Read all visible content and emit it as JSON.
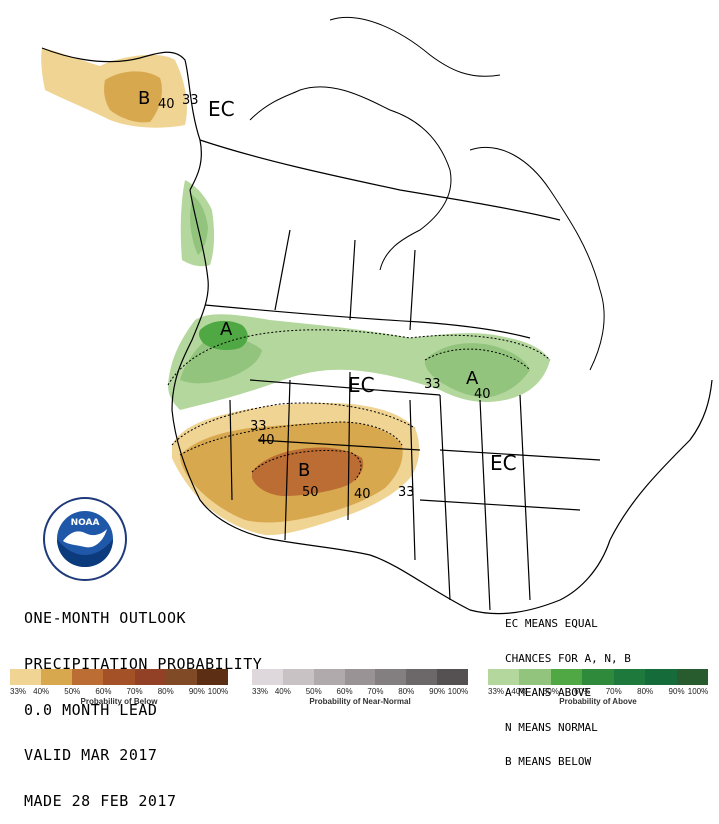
{
  "map": {
    "labels": {
      "ec_alaska": "EC",
      "ec_central": "EC",
      "ec_east": "EC",
      "b_alaska": "B",
      "b_southwest": "B",
      "a_northwest": "A",
      "a_greatlakes": "A"
    },
    "contours": {
      "ak_40": "40",
      "ak_33": "33",
      "sw_33": "33",
      "sw_40": "40",
      "sw_50": "50",
      "sw_40b": "40",
      "sw_33b": "33",
      "gl_33": "33",
      "gl_40": "40"
    }
  },
  "title": {
    "line1": "ONE-MONTH OUTLOOK",
    "line2": "PRECIPITATION PROBABILITY",
    "line3": "0.0 MONTH LEAD",
    "line4": "VALID MAR 2017",
    "line5": "MADE 28 FEB 2017"
  },
  "legend_note": {
    "line1": "EC MEANS EQUAL",
    "line2": "CHANCES FOR A, N, B",
    "line3": "A MEANS ABOVE",
    "line4": "N MEANS NORMAL",
    "line5": "B MEANS BELOW"
  },
  "logo": {
    "text": "NOAA",
    "ring_text": "NATIONAL OCEANIC AND ATMOSPHERIC ADMINISTRATION · U.S. DEPARTMENT OF COMMERCE"
  },
  "legend": {
    "below": {
      "caption": "Probability of Below",
      "ticks": [
        "33%",
        "40%",
        "50%",
        "60%",
        "70%",
        "80%",
        "90%",
        "100%"
      ],
      "colors": [
        "#f0d493",
        "#d8a84f",
        "#bb6d33",
        "#a45127",
        "#934126",
        "#804a27",
        "#5c2f14",
        "#4a2418"
      ]
    },
    "normal": {
      "caption": "Probability of Near-Normal",
      "ticks": [
        "33%",
        "40%",
        "50%",
        "60%",
        "70%",
        "80%",
        "90%",
        "100%"
      ],
      "colors": [
        "#ded8dc",
        "#c8c2c4",
        "#b0aaac",
        "#999395",
        "#837e80",
        "#6c6769",
        "#555052",
        "#3e3a3c"
      ]
    },
    "above": {
      "caption": "Probability of Above",
      "ticks": [
        "33%",
        "40%",
        "50%",
        "60%",
        "70%",
        "80%",
        "90%",
        "100%"
      ],
      "colors": [
        "#b4d79d",
        "#93c47d",
        "#4fa843",
        "#2f8a3c",
        "#1e7a3c",
        "#166b3a",
        "#285c2f",
        "#1c4a23"
      ]
    }
  },
  "colors": {
    "below_33": "#f0d493",
    "below_40": "#d8a84f",
    "below_50": "#bb6d33",
    "above_33": "#b4d79d",
    "above_40": "#93c47d",
    "above_50": "#4fa843"
  }
}
